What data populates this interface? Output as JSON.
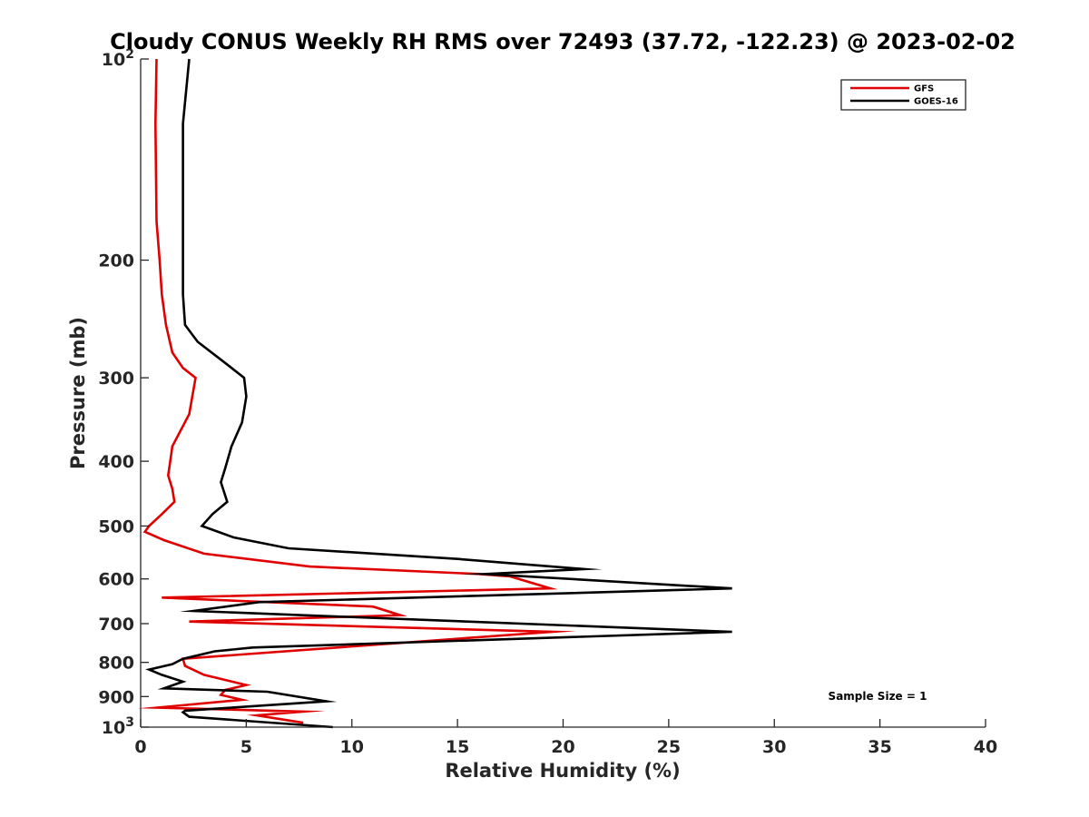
{
  "chart_data": {
    "type": "line",
    "title": "Cloudy CONUS Weekly RH RMS over 72493 (37.72, -122.23) @ 2023-02-02",
    "xlabel": "Relative Humidity (%)",
    "ylabel": "Pressure (mb)",
    "xlim": [
      0,
      40
    ],
    "ylim": [
      100,
      1000
    ],
    "y_scale": "log",
    "y_reversed": true,
    "x_ticks": [
      "0",
      "5",
      "10",
      "15",
      "20",
      "25",
      "30",
      "35",
      "40"
    ],
    "y_ticks": [
      {
        "value": 100,
        "base": "10",
        "exp": "2"
      },
      {
        "value": 200,
        "label": "200"
      },
      {
        "value": 300,
        "label": "300"
      },
      {
        "value": 400,
        "label": "400"
      },
      {
        "value": 500,
        "label": "500"
      },
      {
        "value": 600,
        "label": "600"
      },
      {
        "value": 700,
        "label": "700"
      },
      {
        "value": 800,
        "label": "800"
      },
      {
        "value": 900,
        "label": "900"
      },
      {
        "value": 1000,
        "base": "10",
        "exp": "3"
      }
    ],
    "legend_position": "top-right",
    "annotation": "Sample Size = 1",
    "grid": false,
    "series": [
      {
        "name": "GFS",
        "color": "#e00000",
        "points": [
          [
            0.75,
            100
          ],
          [
            0.7,
            125
          ],
          [
            0.75,
            175
          ],
          [
            0.9,
            200
          ],
          [
            1.0,
            225
          ],
          [
            1.2,
            250
          ],
          [
            1.5,
            275
          ],
          [
            2.0,
            290
          ],
          [
            2.6,
            300
          ],
          [
            2.3,
            340
          ],
          [
            1.5,
            380
          ],
          [
            1.4,
            400
          ],
          [
            1.3,
            420
          ],
          [
            1.5,
            440
          ],
          [
            1.6,
            460
          ],
          [
            1.0,
            480
          ],
          [
            0.4,
            500
          ],
          [
            0.2,
            510
          ],
          [
            1.1,
            525
          ],
          [
            3.0,
            550
          ],
          [
            8.0,
            575
          ],
          [
            16.0,
            590
          ],
          [
            17.5,
            595
          ],
          [
            19.4,
            620
          ],
          [
            1.0,
            640
          ],
          [
            11.0,
            660
          ],
          [
            12.3,
            680
          ],
          [
            2.3,
            695
          ],
          [
            19.5,
            720
          ],
          [
            2.0,
            790
          ],
          [
            2.1,
            810
          ],
          [
            3.0,
            835
          ],
          [
            5.0,
            865
          ],
          [
            4.0,
            880
          ],
          [
            3.8,
            895
          ],
          [
            4.8,
            910
          ],
          [
            0.8,
            935
          ],
          [
            7.7,
            948
          ],
          [
            5.5,
            960
          ],
          [
            7.7,
            985
          ]
        ]
      },
      {
        "name": "GOES-16",
        "color": "#000000",
        "points": [
          [
            2.3,
            100
          ],
          [
            2.0,
            125
          ],
          [
            2.0,
            175
          ],
          [
            2.0,
            200
          ],
          [
            2.0,
            225
          ],
          [
            2.1,
            250
          ],
          [
            2.7,
            265
          ],
          [
            4.0,
            285
          ],
          [
            4.9,
            300
          ],
          [
            5.0,
            320
          ],
          [
            4.8,
            350
          ],
          [
            4.3,
            380
          ],
          [
            4.0,
            410
          ],
          [
            3.8,
            430
          ],
          [
            3.9,
            440
          ],
          [
            4.1,
            460
          ],
          [
            3.4,
            480
          ],
          [
            2.9,
            500
          ],
          [
            4.4,
            520
          ],
          [
            7.0,
            540
          ],
          [
            15.0,
            560
          ],
          [
            21.0,
            580
          ],
          [
            16.3,
            590
          ],
          [
            28.0,
            620
          ],
          [
            5.6,
            650
          ],
          [
            2.5,
            670
          ],
          [
            28.0,
            720
          ],
          [
            5.3,
            760
          ],
          [
            3.5,
            770
          ],
          [
            2.0,
            790
          ],
          [
            1.5,
            805
          ],
          [
            0.4,
            820
          ],
          [
            1.0,
            835
          ],
          [
            2.0,
            855
          ],
          [
            1.1,
            875
          ],
          [
            6.0,
            885
          ],
          [
            8.8,
            915
          ],
          [
            2.1,
            945
          ],
          [
            2.0,
            950
          ],
          [
            2.3,
            965
          ],
          [
            9.1,
            1000
          ]
        ]
      }
    ]
  }
}
